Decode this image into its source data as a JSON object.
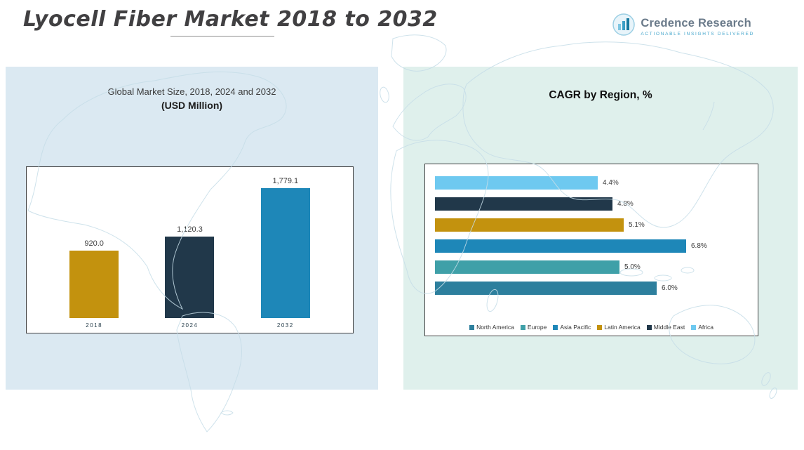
{
  "header": {
    "title": "Lyocell Fiber Market 2018 to 2032",
    "logo": {
      "name": "Credence Research",
      "tagline": "Actionable Insights Delivered"
    }
  },
  "left_panel": {
    "title": "Global Market Size, 2018, 2024 and 2032",
    "subtitle": "(USD Million)"
  },
  "right_panel": {
    "title": "CAGR by Region, %"
  },
  "chart_data": [
    {
      "type": "bar",
      "orientation": "vertical",
      "title": "Global Market Size, 2018, 2024 and 2032 (USD Million)",
      "categories": [
        "2018",
        "2024",
        "2032"
      ],
      "values": [
        920.0,
        1120.3,
        1779.1
      ],
      "data_labels": [
        "920.0",
        "1,120.3",
        "1,779.1"
      ],
      "colors": [
        "#C3920E",
        "#21384A",
        "#1E87B8"
      ],
      "ylabel": "USD Million",
      "ylim": [
        0,
        1900
      ],
      "grid": false
    },
    {
      "type": "bar",
      "orientation": "horizontal",
      "title": "CAGR by Region, %",
      "categories": [
        "Africa",
        "Middle East",
        "Latin America",
        "Asia Pacific",
        "Europe",
        "North America"
      ],
      "values": [
        4.4,
        4.8,
        5.1,
        6.8,
        5.0,
        6.0
      ],
      "data_labels": [
        "4.4%",
        "4.8%",
        "5.1%",
        "6.8%",
        "5.0%",
        "6.0%"
      ],
      "colors": [
        "#6EC9F0",
        "#21384A",
        "#C3920E",
        "#1E87B8",
        "#3FA0A8",
        "#2D7F9D"
      ],
      "xlim": [
        0,
        7.5
      ],
      "grid": false,
      "legend": {
        "position": "bottom",
        "items": [
          "North America",
          "Europe",
          "Asia Pacific",
          "Latin America",
          "Middle East",
          "Africa"
        ],
        "colors": [
          "#2D7F9D",
          "#3FA0A8",
          "#1E87B8",
          "#C3920E",
          "#21384A",
          "#6EC9F0"
        ]
      }
    }
  ]
}
